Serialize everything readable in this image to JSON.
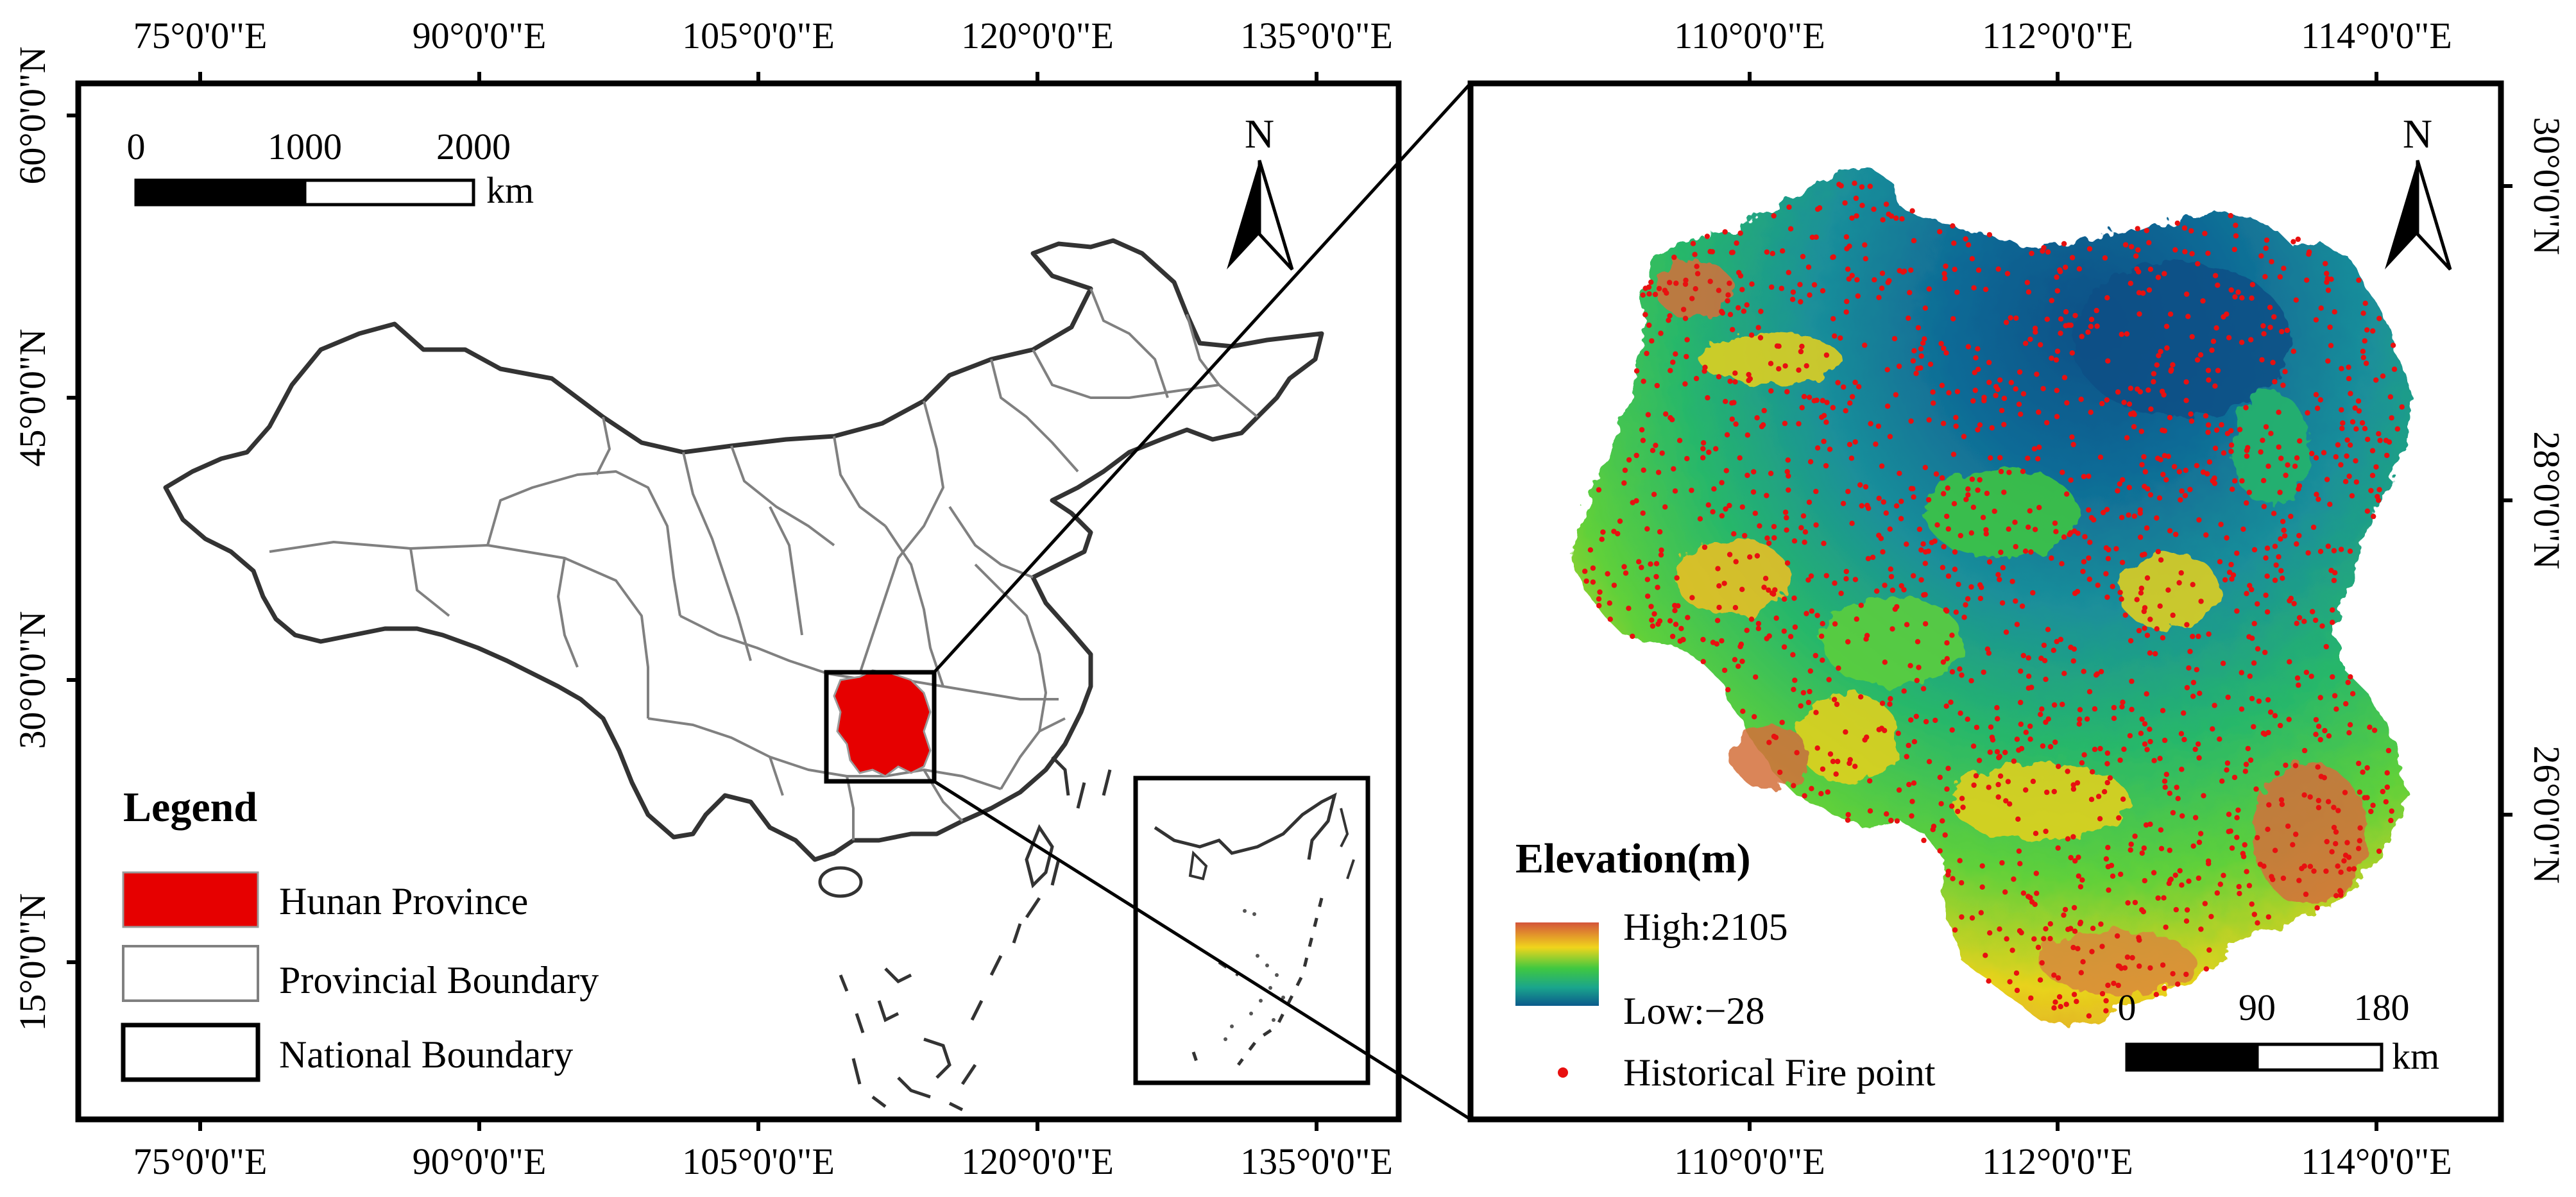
{
  "left_map": {
    "top_lon_labels": [
      "75°0'0\"E",
      "90°0'0\"E",
      "105°0'0\"E",
      "120°0'0\"E",
      "135°0'0\"E"
    ],
    "bottom_lon_labels": [
      "75°0'0\"E",
      "90°0'0\"E",
      "105°0'0\"E",
      "120°0'0\"E",
      "135°0'0\"E"
    ],
    "lat_labels": [
      "60°0'0\"N",
      "45°0'0\"N",
      "30°0'0\"N",
      "15°0'0\"N"
    ],
    "scale_bar": {
      "ticks": [
        "0",
        "1000",
        "2000"
      ],
      "unit": "km"
    },
    "north_arrow": "N",
    "legend": {
      "title": "Legend",
      "items": [
        {
          "label": "Hunan Province",
          "color": "#e60000"
        },
        {
          "label": "Provincial Boundary",
          "color": "#808080"
        },
        {
          "label": "National Boundary",
          "color": "#000000"
        }
      ]
    }
  },
  "right_map": {
    "top_lon_labels": [
      "110°0'0\"E",
      "112°0'0\"E",
      "114°0'0\"E"
    ],
    "bottom_lon_labels": [
      "110°0'0\"E",
      "112°0'0\"E",
      "114°0'0\"E"
    ],
    "lat_labels": [
      "30°0'0\"N",
      "28°0'0\"N",
      "26°0'0\"N"
    ],
    "north_arrow": "N",
    "scale_bar": {
      "ticks": [
        "0",
        "90",
        "180"
      ],
      "unit": "km"
    },
    "legend": {
      "title": "Elevation(m)",
      "high_label": "High:2105",
      "low_label": "Low:−28",
      "ramp_colors": [
        "#d4553a",
        "#f0d51c",
        "#40c840",
        "#1aa58c",
        "#0b5a8c"
      ],
      "fire_label": "Historical Fire point",
      "fire_color": "#e81010"
    }
  }
}
